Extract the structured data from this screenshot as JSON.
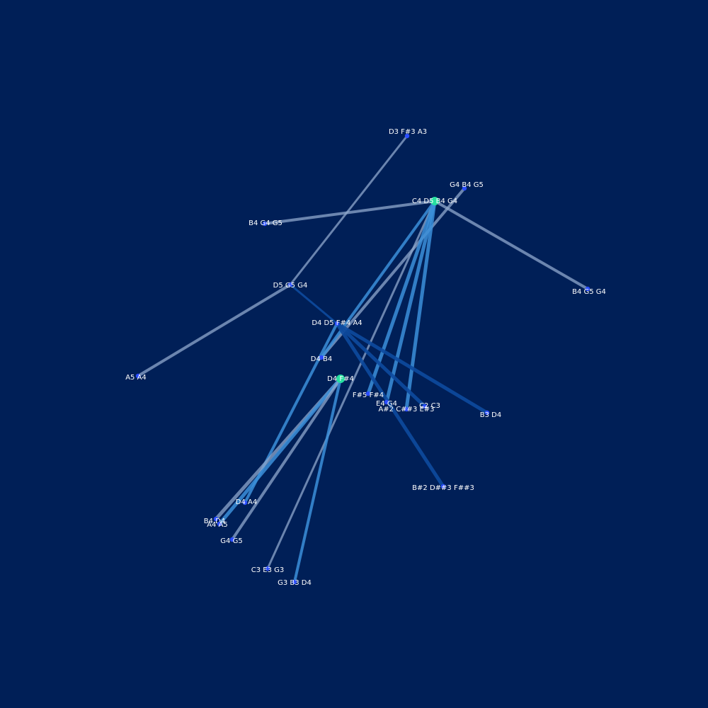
{
  "colors": {
    "background": "#001f57",
    "node_default": "#2a4dff",
    "node_hub": "#26e0a0",
    "label": "#ffffff",
    "edge_light": "#8fa8cc",
    "edge_mid": "#3b8fd9",
    "edge_dark": "#0d4a9e"
  },
  "nodes": [
    {
      "id": "n_d3fs3a3",
      "label": "D3 F#3 A3"
    },
    {
      "id": "n_g4b4g5",
      "label": "G4 B4 G5"
    },
    {
      "id": "n_c4d5b4g4",
      "label": "C4 D5 B4 G4",
      "hub": true
    },
    {
      "id": "n_b4g4g5",
      "label": "B4 G4 G5"
    },
    {
      "id": "n_b4g5g4",
      "label": "B4 G5 G4"
    },
    {
      "id": "n_d5g5g4",
      "label": "D5 G5 G4"
    },
    {
      "id": "n_d4d5fs4a4",
      "label": "D4 D5 F#4 A4"
    },
    {
      "id": "n_a5a4",
      "label": "A5 A4"
    },
    {
      "id": "n_d4b4",
      "label": "D4 B4"
    },
    {
      "id": "n_d4fs4",
      "label": "D4 F#4",
      "hub": true
    },
    {
      "id": "n_fs5fs4",
      "label": "F#5 F#4"
    },
    {
      "id": "n_e4g4",
      "label": "E4 G4"
    },
    {
      "id": "n_c2c3",
      "label": "C2 C3"
    },
    {
      "id": "n_as2",
      "label": "A#2 C##3 E#3"
    },
    {
      "id": "n_b3d4",
      "label": "B3 D4"
    },
    {
      "id": "n_bs2",
      "label": "B#2 D##3 F##3"
    },
    {
      "id": "n_d4a4",
      "label": "D4 A4"
    },
    {
      "id": "n_b4d4",
      "label": "B4 D4"
    },
    {
      "id": "n_a4a5",
      "label": "A4 A5"
    },
    {
      "id": "n_g4g5",
      "label": "G4 G5"
    },
    {
      "id": "n_c3e3g3",
      "label": "C3 E3 G3"
    },
    {
      "id": "n_g3b3d4",
      "label": "G3 B3 D4"
    }
  ],
  "edges": [
    {
      "from": "n_d3fs3a3",
      "to": "n_d5g5g4",
      "tone": "light",
      "weight": 3
    },
    {
      "from": "n_c4d5b4g4",
      "to": "n_b4g4g5",
      "tone": "light",
      "weight": 4
    },
    {
      "from": "n_c4d5b4g4",
      "to": "n_b4g5g4",
      "tone": "light",
      "weight": 4
    },
    {
      "from": "n_d5g5g4",
      "to": "n_a5a4",
      "tone": "light",
      "weight": 4
    },
    {
      "from": "n_d5g5g4",
      "to": "n_d4d5fs4a4",
      "tone": "dark",
      "weight": 3
    },
    {
      "from": "n_g4b4g5",
      "to": "n_d4b4",
      "tone": "light",
      "weight": 4
    },
    {
      "from": "n_c4d5b4g4",
      "to": "n_d4b4",
      "tone": "mid",
      "weight": 4
    },
    {
      "from": "n_c4d5b4g4",
      "to": "n_c3e3g3",
      "tone": "light",
      "weight": 3
    },
    {
      "from": "n_c4d5b4g4",
      "to": "n_fs5fs4",
      "tone": "mid",
      "weight": 5
    },
    {
      "from": "n_c4d5b4g4",
      "to": "n_e4g4",
      "tone": "mid",
      "weight": 5
    },
    {
      "from": "n_c4d5b4g4",
      "to": "n_as2",
      "tone": "mid",
      "weight": 5
    },
    {
      "from": "n_d4d5fs4a4",
      "to": "n_c2c3",
      "tone": "dark",
      "weight": 5
    },
    {
      "from": "n_d4d5fs4a4",
      "to": "n_b3d4",
      "tone": "dark",
      "weight": 5
    },
    {
      "from": "n_d4d5fs4a4",
      "to": "n_bs2",
      "tone": "dark",
      "weight": 5
    },
    {
      "from": "n_d4d5fs4a4",
      "to": "n_d4a4",
      "tone": "mid",
      "weight": 4
    },
    {
      "from": "n_d4fs4",
      "to": "n_b4d4",
      "tone": "light",
      "weight": 5
    },
    {
      "from": "n_d4fs4",
      "to": "n_a4a5",
      "tone": "mid",
      "weight": 5
    },
    {
      "from": "n_d4fs4",
      "to": "n_g4g5",
      "tone": "light",
      "weight": 4
    },
    {
      "from": "n_d4fs4",
      "to": "n_g3b3d4",
      "tone": "mid",
      "weight": 4
    }
  ]
}
